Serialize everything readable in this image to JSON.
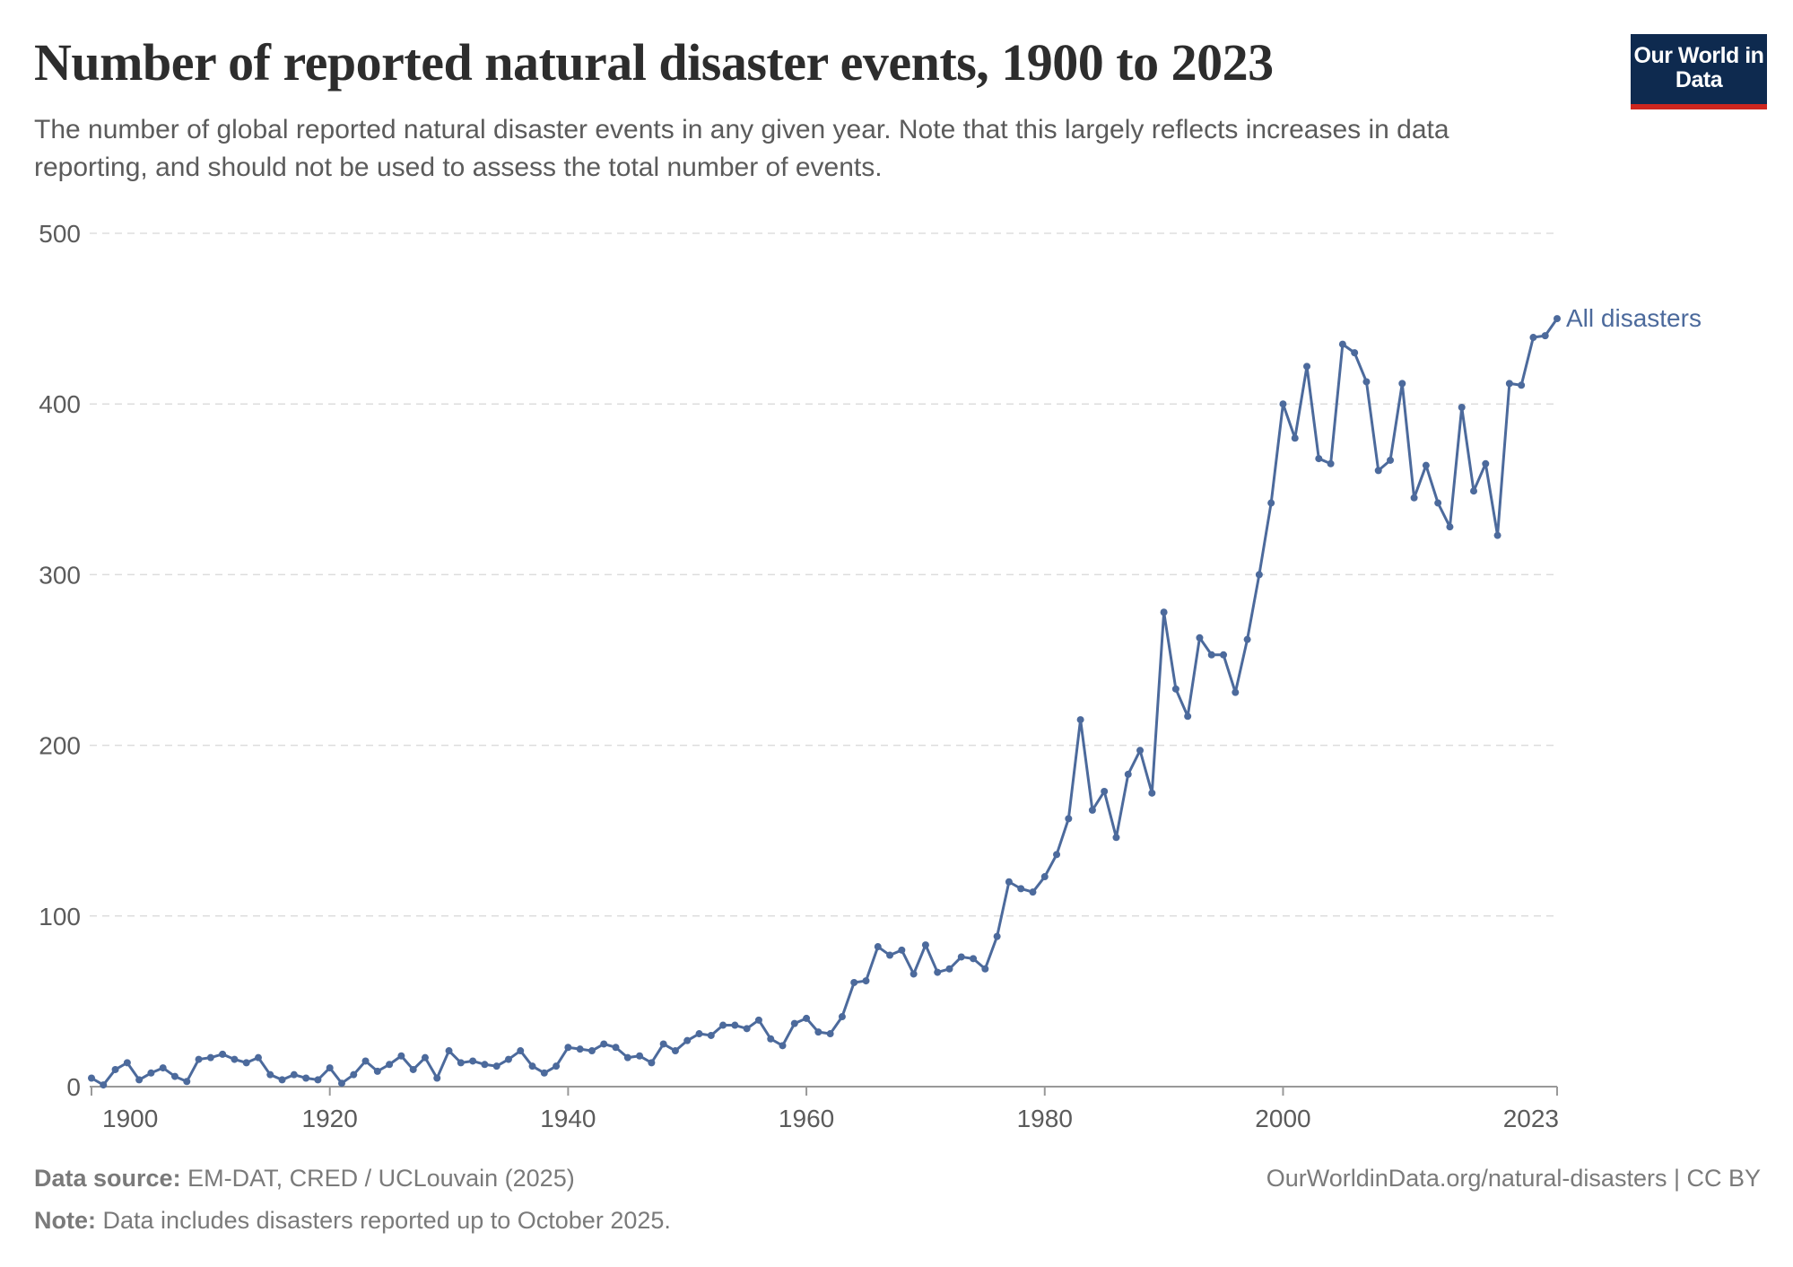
{
  "header": {
    "title": "Number of reported natural disaster events, 1900 to 2023",
    "subtitle": "The number of global reported natural disaster events in any given year. Note that this largely reflects increases in data reporting, and should not be used to assess the total number of events.",
    "logo_text": "Our World in Data"
  },
  "footer": {
    "source_label": "Data source:",
    "source_text": "EM-DAT, CRED / UCLouvain (2025)",
    "note_label": "Note:",
    "note_text": "Data includes disasters reported up to October 2025.",
    "url": "OurWorldinData.org/natural-disasters | CC BY"
  },
  "colors": {
    "line": "#4c6a9c",
    "grid": "#dddddd",
    "axis": "#999999",
    "text": "#5b5b5b"
  },
  "chart_data": {
    "type": "line",
    "title": "Number of reported natural disaster events, 1900 to 2023",
    "xlabel": "",
    "ylabel": "",
    "xlim": [
      1900,
      2023
    ],
    "ylim": [
      0,
      500
    ],
    "x_ticks": [
      1900,
      1920,
      1940,
      1960,
      1980,
      2000,
      2023
    ],
    "y_ticks": [
      0,
      100,
      200,
      300,
      400,
      500
    ],
    "grid": "horizontal dashed",
    "legend": "inline label at line end",
    "series": [
      {
        "name": "All disasters",
        "x_start": 1900,
        "values": [
          5,
          1,
          10,
          14,
          4,
          8,
          11,
          6,
          3,
          16,
          17,
          19,
          16,
          14,
          17,
          7,
          4,
          7,
          5,
          4,
          11,
          2,
          7,
          15,
          9,
          13,
          18,
          10,
          17,
          5,
          21,
          14,
          15,
          13,
          12,
          16,
          21,
          12,
          8,
          12,
          23,
          22,
          21,
          25,
          23,
          17,
          18,
          14,
          25,
          21,
          27,
          31,
          30,
          36,
          36,
          34,
          39,
          28,
          24,
          37,
          40,
          32,
          31,
          41,
          61,
          62,
          82,
          77,
          80,
          66,
          83,
          67,
          69,
          76,
          75,
          69,
          88,
          120,
          116,
          114,
          123,
          136,
          157,
          215,
          162,
          173,
          146,
          183,
          197,
          172,
          278,
          233,
          217,
          263,
          253,
          253,
          231,
          262,
          300,
          342,
          400,
          380,
          422,
          368,
          365,
          435,
          430,
          413,
          361,
          367,
          412,
          345,
          364,
          342,
          328,
          398,
          349,
          365,
          323,
          412,
          411,
          439,
          440,
          450
        ]
      }
    ]
  }
}
